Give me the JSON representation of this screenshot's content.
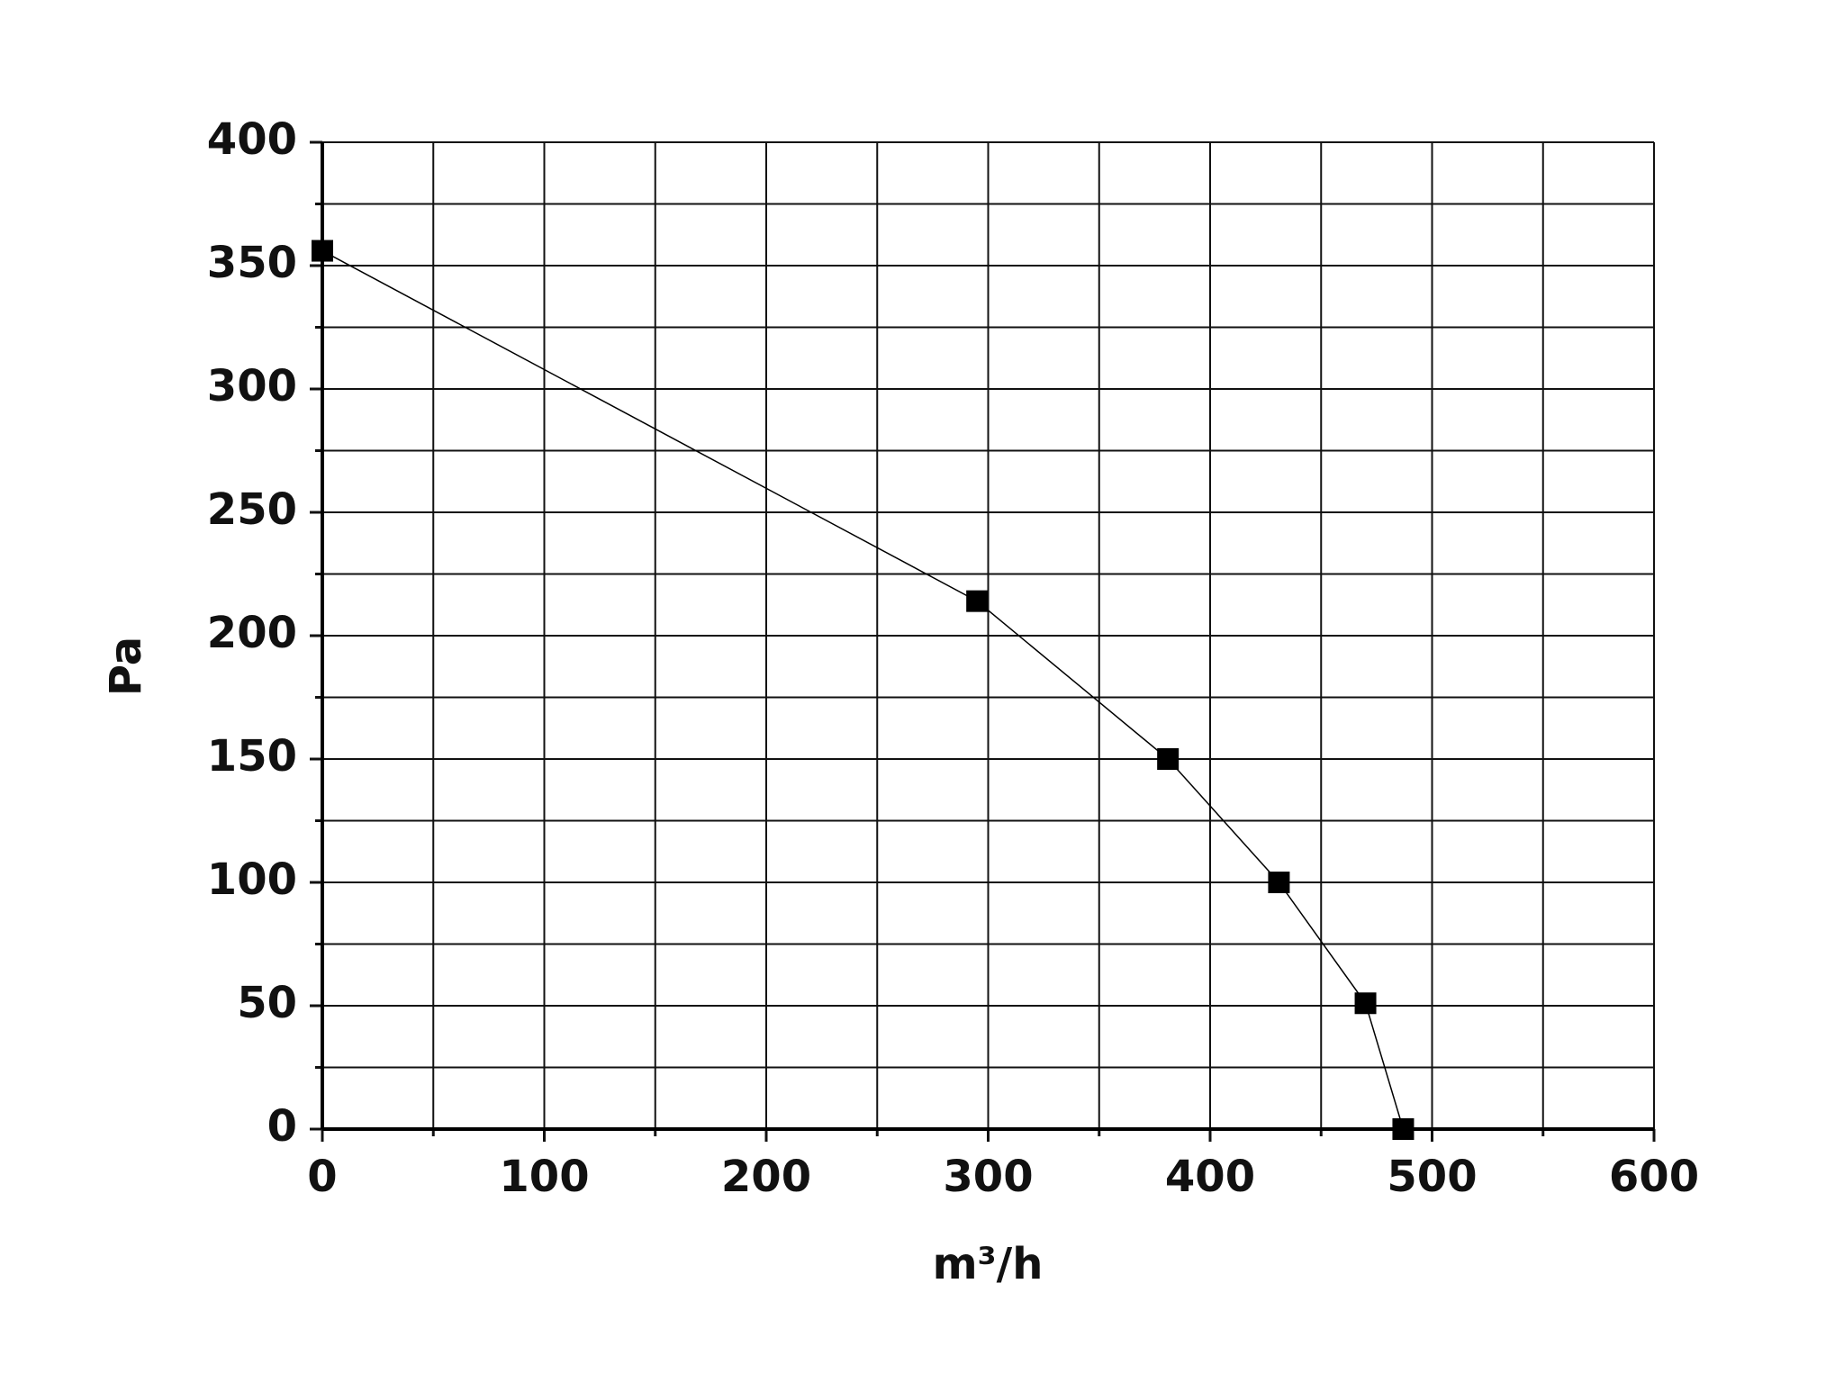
{
  "chart_data": {
    "type": "line",
    "x_label": "m³/h",
    "y_label": "Pa",
    "x": [
      0,
      295,
      381,
      431,
      470,
      487
    ],
    "values": [
      356,
      214,
      150,
      100,
      51,
      0
    ],
    "color": "#000000",
    "xlim": [
      0,
      600
    ],
    "xticks": [
      0,
      100,
      200,
      300,
      400,
      500,
      600
    ],
    "ylim": [
      0,
      400
    ],
    "yticks": [
      0,
      50,
      100,
      150,
      200,
      250,
      300,
      350,
      400
    ],
    "grid": true
  }
}
